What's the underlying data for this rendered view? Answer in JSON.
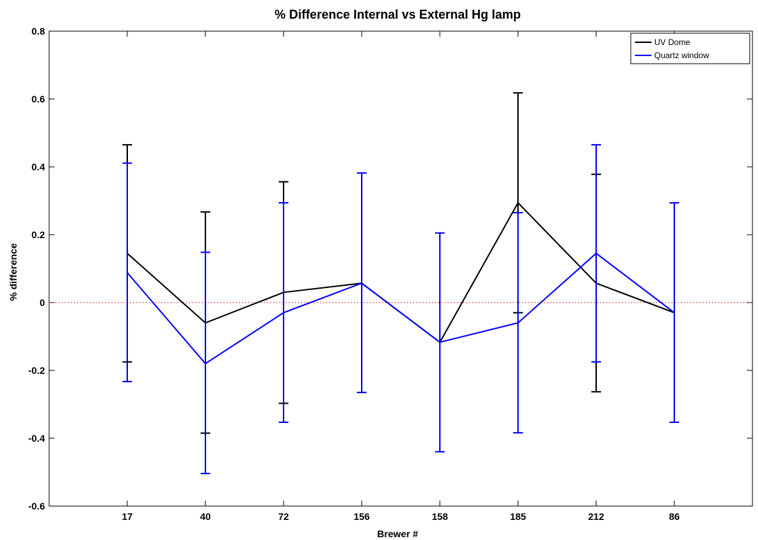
{
  "chart_data": {
    "type": "line",
    "title": "% Difference Internal vs External Hg lamp",
    "xlabel": "Brewer #",
    "ylabel": "% difference",
    "categories": [
      "17",
      "40",
      "72",
      "156",
      "158",
      "185",
      "212",
      "86"
    ],
    "ylim": [
      -0.6,
      0.8
    ],
    "yticks": [
      -0.6,
      -0.4,
      -0.2,
      0,
      0.2,
      0.4,
      0.6,
      0.8
    ],
    "ytick_labels": [
      "-0.6",
      "-0.4",
      "-0.2",
      "0",
      "0.2",
      "0.4",
      "0.6",
      "0.8"
    ],
    "grid": false,
    "legend_position": "top-right",
    "reference_line": {
      "y": 0,
      "color": "#e03030",
      "style": "dotted"
    },
    "series": [
      {
        "name": "UV Dome",
        "color": "#000000",
        "values": [
          0.145,
          -0.06,
          0.03,
          0.057,
          -0.117,
          0.294,
          0.057,
          -0.03
        ],
        "err_low": [
          -0.175,
          -0.385,
          -0.297,
          null,
          null,
          -0.03,
          -0.263,
          null
        ],
        "err_high": [
          0.465,
          0.267,
          0.356,
          null,
          null,
          0.618,
          0.378,
          null
        ]
      },
      {
        "name": "Quartz window",
        "color": "#0000ff",
        "values": [
          0.088,
          -0.18,
          -0.03,
          0.057,
          -0.117,
          -0.06,
          0.145,
          -0.03
        ],
        "err_low": [
          -0.233,
          -0.504,
          -0.353,
          -0.265,
          -0.44,
          -0.384,
          -0.175,
          -0.353
        ],
        "err_high": [
          0.411,
          0.148,
          0.294,
          0.382,
          0.205,
          0.265,
          0.465,
          0.294
        ]
      }
    ]
  }
}
